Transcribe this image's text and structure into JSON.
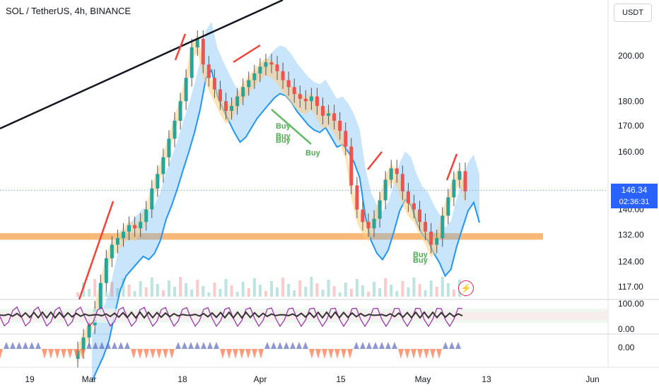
{
  "header": {
    "symbol_title": "SOL / TetherUS, 4h, BINANCE",
    "currency_button": "USDT"
  },
  "price_tags": {
    "last_price": "146.34",
    "countdown": "02:36:31"
  },
  "chart_data": {
    "type": "candlestick",
    "title": "SOL / TetherUS, 4h, BINANCE",
    "y_ticks": [
      "200.00",
      "180.00",
      "170.00",
      "160.00",
      "140.00",
      "132.00",
      "124.00",
      "117.00"
    ],
    "y_tick_values": [
      200,
      180,
      170,
      160,
      140,
      132,
      124,
      117
    ],
    "y_scale": "log",
    "x_ticks": [
      "19",
      "Mar",
      "18",
      "Apr",
      "15",
      "May",
      "13",
      "Jun"
    ],
    "last_price": 146.34,
    "support_zone": [
      130.5,
      132.5
    ],
    "annotations": [
      "Buy",
      "Buy",
      "Buy",
      "Buy",
      "Buy",
      "Buy"
    ],
    "approx_close_series": [
      101,
      104,
      107,
      111,
      118,
      125,
      129,
      131,
      133,
      135,
      134,
      136,
      140,
      147,
      152,
      158,
      165,
      172,
      180,
      190,
      204,
      208,
      196,
      190,
      185,
      180,
      176,
      178,
      182,
      186,
      189,
      192,
      195,
      197,
      196,
      193,
      189,
      186,
      183,
      181,
      180,
      182,
      178,
      174,
      175,
      172,
      168,
      162,
      148,
      140,
      136,
      134,
      137,
      143,
      150,
      154,
      152,
      146,
      142,
      140,
      136,
      133,
      129,
      131,
      138,
      144,
      150,
      153,
      146
    ],
    "rsi_panel": {
      "ticks": [
        "100.00",
        "0.00"
      ],
      "tick_values": [
        100,
        0
      ]
    },
    "oscillator_panel": {
      "ticks": [
        "0.00"
      ],
      "tick_values": [
        0
      ]
    },
    "colors": {
      "up": "#26a69a",
      "down": "#ef5350",
      "last_price": "#2962ff",
      "support": "#f7a14c",
      "buy": "#4caf50",
      "trendline": "#131722",
      "cloud": "#2196f3"
    }
  }
}
